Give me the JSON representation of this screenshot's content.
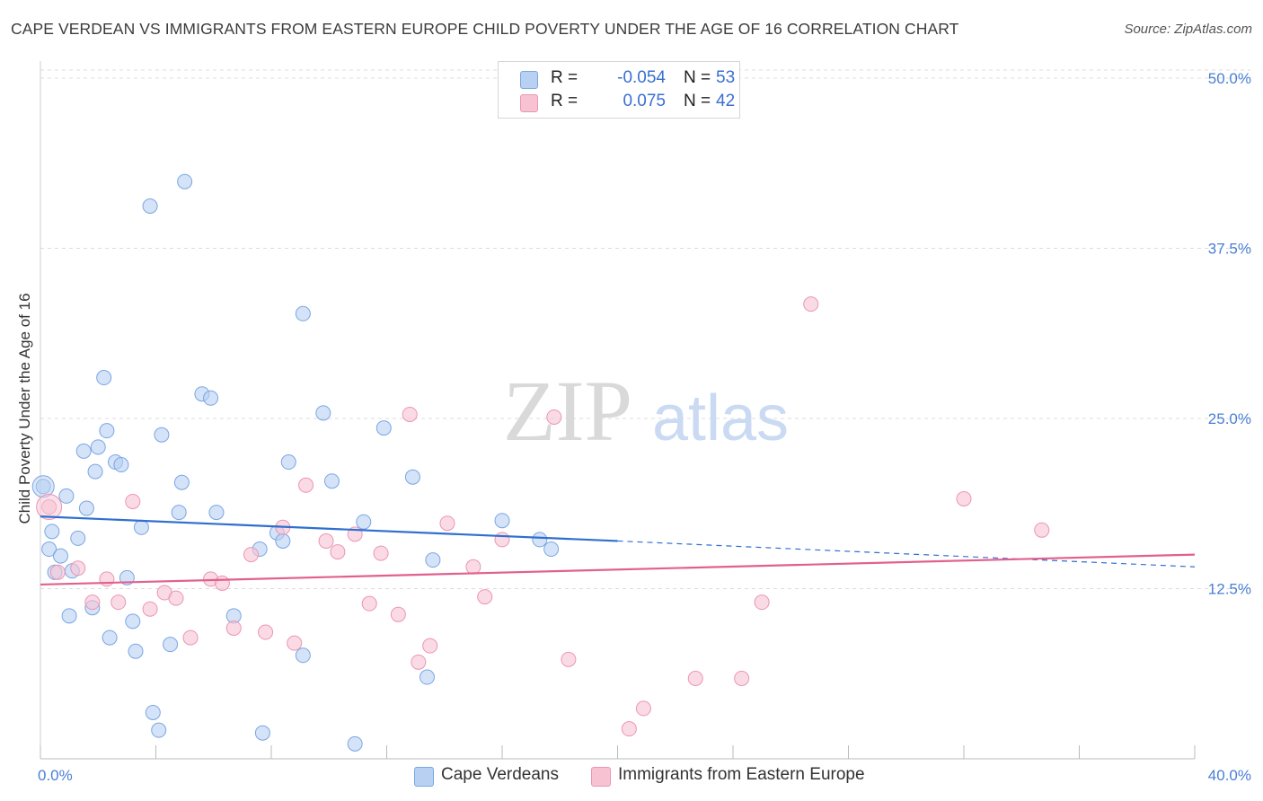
{
  "title": "CAPE VERDEAN VS IMMIGRANTS FROM EASTERN EUROPE CHILD POVERTY UNDER THE AGE OF 16 CORRELATION CHART",
  "source": "Source: ZipAtlas.com",
  "watermark": {
    "zip": "ZIP",
    "atlas": "atlas"
  },
  "colors": {
    "blue_fill": "#b8d0f2",
    "blue_stroke": "#7aa6e3",
    "blue_line": "#2f6fcf",
    "pink_fill": "#f7c3d3",
    "pink_stroke": "#ec95b1",
    "pink_line": "#e2608e",
    "axis_text": "#4a7fd4",
    "grid": "#dcdcdc"
  },
  "legend": {
    "rows": [
      {
        "r_label": "R =",
        "r_value": "-0.054",
        "n_label": "N =",
        "n_value": "53",
        "color": "#b8d0f2",
        "stroke": "#7aa6e3"
      },
      {
        "r_label": "R =",
        "r_value": "0.075",
        "n_label": "N =",
        "n_value": "42",
        "color": "#f7c3d3",
        "stroke": "#ec95b1"
      }
    ]
  },
  "bottom_legend": [
    {
      "label": "Cape Verdeans",
      "color": "#b8d0f2",
      "stroke": "#7aa6e3"
    },
    {
      "label": "Immigrants from Eastern Europe",
      "color": "#f7c3d3",
      "stroke": "#ec95b1"
    }
  ],
  "chart_data": {
    "type": "scatter",
    "title": "CAPE VERDEAN VS IMMIGRANTS FROM EASTERN EUROPE CHILD POVERTY UNDER THE AGE OF 16 CORRELATION CHART",
    "xlabel": "",
    "ylabel": "Child Poverty Under the Age of 16",
    "xlim": [
      0,
      40
    ],
    "ylim": [
      0,
      50
    ],
    "x_tick_labels": [
      "0.0%",
      "40.0%"
    ],
    "y_ticks": [
      12.5,
      25.0,
      37.5,
      50.0
    ],
    "y_tick_labels": [
      "12.5%",
      "25.0%",
      "37.5%",
      "50.0%"
    ],
    "x_minor_ticks": [
      0,
      4,
      8,
      12,
      16,
      20,
      24,
      28,
      32,
      36,
      40
    ],
    "grid": true,
    "legend_position": "top-center",
    "series": [
      {
        "name": "Cape Verdeans",
        "r": -0.054,
        "n": 53,
        "trend": {
          "x0": 0,
          "y0": 17.8,
          "x1": 20,
          "y1": 16.0,
          "dashed_x1": 40,
          "dashed_y1": 14.1
        },
        "points": [
          [
            0.1,
            20.0
          ],
          [
            0.3,
            15.4
          ],
          [
            0.4,
            16.7
          ],
          [
            0.5,
            13.7
          ],
          [
            0.7,
            14.9
          ],
          [
            0.9,
            19.3
          ],
          [
            1.0,
            10.5
          ],
          [
            1.1,
            13.8
          ],
          [
            1.3,
            16.2
          ],
          [
            1.5,
            22.6
          ],
          [
            1.6,
            18.4
          ],
          [
            1.8,
            11.1
          ],
          [
            1.9,
            21.1
          ],
          [
            2.0,
            22.9
          ],
          [
            2.2,
            28.0
          ],
          [
            2.3,
            24.1
          ],
          [
            2.4,
            8.9
          ],
          [
            2.6,
            21.8
          ],
          [
            2.8,
            21.6
          ],
          [
            3.0,
            13.3
          ],
          [
            3.2,
            10.1
          ],
          [
            3.3,
            7.9
          ],
          [
            3.5,
            17.0
          ],
          [
            3.8,
            40.6
          ],
          [
            3.9,
            3.4
          ],
          [
            4.1,
            2.1
          ],
          [
            4.2,
            23.8
          ],
          [
            4.5,
            8.4
          ],
          [
            4.8,
            18.1
          ],
          [
            4.9,
            20.3
          ],
          [
            5.0,
            42.4
          ],
          [
            5.6,
            26.8
          ],
          [
            5.9,
            26.5
          ],
          [
            6.1,
            18.1
          ],
          [
            6.7,
            10.5
          ],
          [
            7.6,
            15.4
          ],
          [
            7.7,
            1.9
          ],
          [
            8.2,
            16.6
          ],
          [
            8.4,
            16.0
          ],
          [
            8.6,
            21.8
          ],
          [
            9.1,
            7.6
          ],
          [
            9.1,
            32.7
          ],
          [
            9.8,
            25.4
          ],
          [
            10.1,
            20.4
          ],
          [
            10.9,
            1.1
          ],
          [
            11.2,
            17.4
          ],
          [
            11.9,
            24.3
          ],
          [
            12.9,
            20.7
          ],
          [
            13.4,
            6.0
          ],
          [
            13.6,
            14.6
          ],
          [
            16.0,
            17.5
          ],
          [
            17.3,
            16.1
          ],
          [
            17.7,
            15.4
          ]
        ]
      },
      {
        "name": "Immigrants from Eastern Europe",
        "r": 0.075,
        "n": 42,
        "trend": {
          "x0": 0,
          "y0": 12.8,
          "x1": 40,
          "y1": 15.0
        },
        "points": [
          [
            0.3,
            18.5
          ],
          [
            0.6,
            13.7
          ],
          [
            1.3,
            14.0
          ],
          [
            1.8,
            11.5
          ],
          [
            2.3,
            13.2
          ],
          [
            2.7,
            11.5
          ],
          [
            3.2,
            18.9
          ],
          [
            3.8,
            11.0
          ],
          [
            4.3,
            12.2
          ],
          [
            4.7,
            11.8
          ],
          [
            5.2,
            8.9
          ],
          [
            5.9,
            13.2
          ],
          [
            6.3,
            12.9
          ],
          [
            6.7,
            9.6
          ],
          [
            7.3,
            15.0
          ],
          [
            7.8,
            9.3
          ],
          [
            8.4,
            17.0
          ],
          [
            8.8,
            8.5
          ],
          [
            9.2,
            20.1
          ],
          [
            9.9,
            16.0
          ],
          [
            10.3,
            15.2
          ],
          [
            10.9,
            16.5
          ],
          [
            11.4,
            11.4
          ],
          [
            11.8,
            15.1
          ],
          [
            12.4,
            10.6
          ],
          [
            12.8,
            25.3
          ],
          [
            13.1,
            7.1
          ],
          [
            13.5,
            8.3
          ],
          [
            14.1,
            17.3
          ],
          [
            15.0,
            14.1
          ],
          [
            15.4,
            11.9
          ],
          [
            16.0,
            16.1
          ],
          [
            17.8,
            25.1
          ],
          [
            18.3,
            7.3
          ],
          [
            20.4,
            2.2
          ],
          [
            20.9,
            3.7
          ],
          [
            22.7,
            5.9
          ],
          [
            24.3,
            5.9
          ],
          [
            25.0,
            11.5
          ],
          [
            26.7,
            33.4
          ],
          [
            32.0,
            19.1
          ],
          [
            34.7,
            16.8
          ]
        ]
      }
    ]
  }
}
